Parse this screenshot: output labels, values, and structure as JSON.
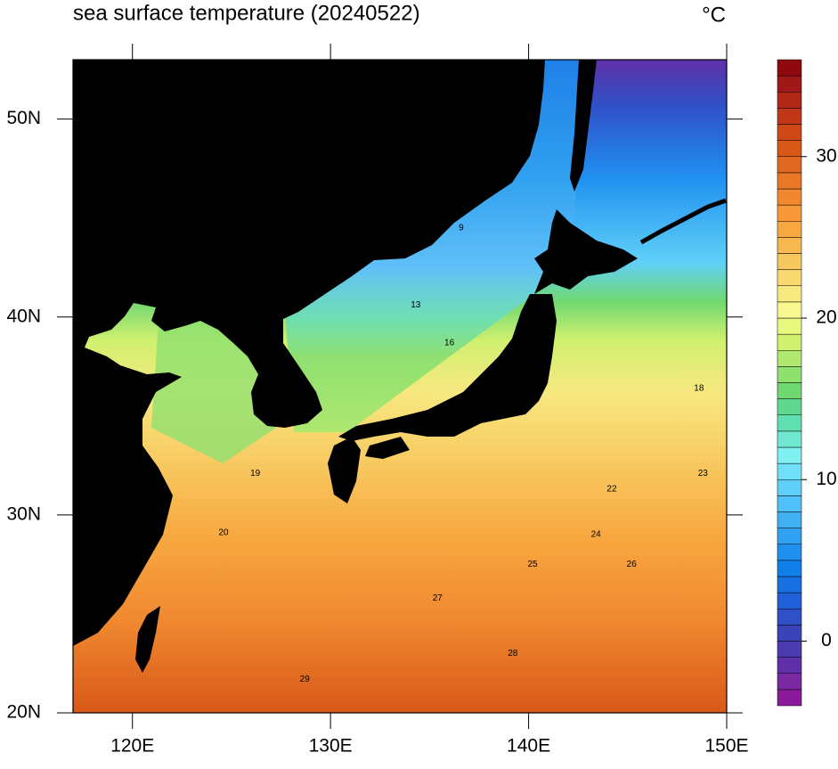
{
  "map": {
    "title": "sea surface temperature (20240522)",
    "unit": "°C",
    "xlim": [
      117,
      150
    ],
    "ylim": [
      20,
      53
    ],
    "xticks": [
      {
        "value": 120,
        "label": "120E"
      },
      {
        "value": 130,
        "label": "130E"
      },
      {
        "value": 140,
        "label": "140E"
      },
      {
        "value": 150,
        "label": "150E"
      }
    ],
    "yticks": [
      {
        "value": 20,
        "label": "20N"
      },
      {
        "value": 30,
        "label": "30N"
      },
      {
        "value": 40,
        "label": "40N"
      },
      {
        "value": 50,
        "label": "50N"
      }
    ],
    "contour_labels": [
      {
        "value": 29,
        "lon": 128.7,
        "lat": 21.7
      },
      {
        "value": 28,
        "lon": 139.2,
        "lat": 23.0
      },
      {
        "value": 27,
        "lon": 135.4,
        "lat": 25.8
      },
      {
        "value": 26,
        "lon": 145.2,
        "lat": 27.5
      },
      {
        "value": 25,
        "lon": 140.2,
        "lat": 27.5
      },
      {
        "value": 24,
        "lon": 143.4,
        "lat": 29.0
      },
      {
        "value": 23,
        "lon": 148.8,
        "lat": 32.1
      },
      {
        "value": 22,
        "lon": 144.2,
        "lat": 31.3
      },
      {
        "value": 18,
        "lon": 148.6,
        "lat": 36.4
      },
      {
        "value": 16,
        "lon": 136.0,
        "lat": 38.7
      },
      {
        "value": 13,
        "lon": 134.3,
        "lat": 40.6
      },
      {
        "value": 9,
        "lon": 136.6,
        "lat": 44.5
      },
      {
        "value": 20,
        "lon": 124.6,
        "lat": 29.1
      },
      {
        "value": 19,
        "lon": 126.2,
        "lat": 32.1
      }
    ]
  },
  "colorbar": {
    "clim": [
      -4,
      36
    ],
    "ticks": [
      0,
      10,
      20,
      30
    ],
    "colors": [
      "#8a1a9a",
      "#7a2aa0",
      "#6030a8",
      "#4a3cb0",
      "#3a44b8",
      "#3050c8",
      "#2060d8",
      "#1870e0",
      "#1080e8",
      "#2090f0",
      "#30a0f0",
      "#40b0f0",
      "#50c0f8",
      "#60d0f8",
      "#70e0f8",
      "#80f0f0",
      "#70e8d0",
      "#60e0b0",
      "#60d890",
      "#70d870",
      "#90e070",
      "#b0e870",
      "#d0f070",
      "#e8f880",
      "#f8f890",
      "#f8e880",
      "#f8d870",
      "#f8c860",
      "#f8b850",
      "#f8a840",
      "#f89838",
      "#f08830",
      "#e87828",
      "#e06820",
      "#d85818",
      "#d04818",
      "#c03818",
      "#b02818",
      "#a01818",
      "#900810"
    ]
  }
}
